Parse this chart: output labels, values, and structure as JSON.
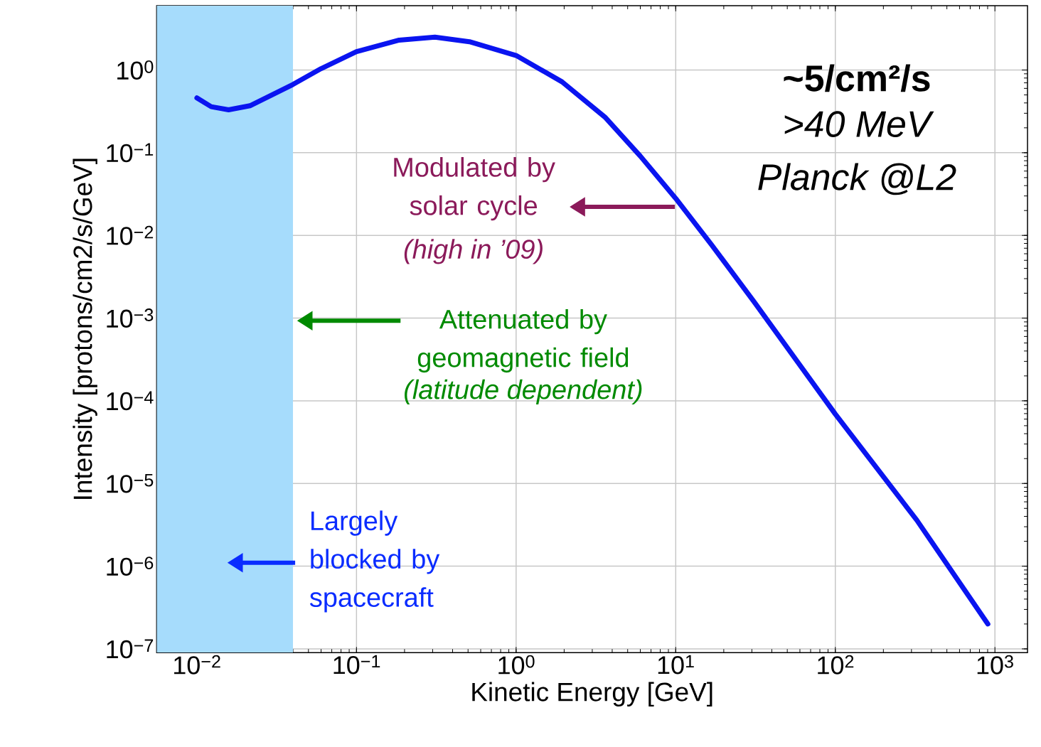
{
  "chart_data": {
    "type": "line",
    "xlabel": "Kinetic Energy [GeV]",
    "ylabel": "Intensity [protons/cm2/s/GeV]",
    "x": [
      0.01,
      0.0123,
      0.0158,
      0.0215,
      0.04,
      0.06,
      0.1,
      0.185,
      0.31,
      0.51,
      1,
      1.94,
      3.6,
      6,
      10,
      16.7,
      30.8,
      100,
      324,
      903
    ],
    "series": [
      {
        "color": "#0a14f0",
        "values": [
          0.46,
          0.36,
          0.33,
          0.37,
          0.67,
          1.04,
          1.67,
          2.3,
          2.5,
          2.2,
          1.5,
          0.72,
          0.27,
          0.091,
          0.028,
          0.0078,
          0.0016,
          6.9e-05,
          3.6e-06,
          2e-07
        ]
      }
    ],
    "log": "xy",
    "grid": true,
    "line_style": "solid",
    "marker": "none",
    "xlim": [
      0.0056,
      1600
    ],
    "ylim": [
      9e-08,
      6
    ],
    "xticks": [
      {
        "value": 0.01,
        "label": "10$^{−2}$"
      },
      {
        "value": 0.1,
        "label": "10$^{−1}$"
      },
      {
        "value": 1,
        "label": "10$^{0}$"
      },
      {
        "value": 10,
        "label": "10$^{1}$"
      },
      {
        "value": 100,
        "label": "10$^{2}$"
      },
      {
        "value": 1000,
        "label": "10$^{3}$"
      }
    ],
    "yticks": [
      {
        "value": 1e-07,
        "label": "10$^{−7}$"
      },
      {
        "value": 1e-06,
        "label": "10$^{−6}$"
      },
      {
        "value": 1e-05,
        "label": "10$^{−5}$"
      },
      {
        "value": 0.0001,
        "label": "10$^{−4}$"
      },
      {
        "value": 0.001,
        "label": "10$^{−3}$"
      },
      {
        "value": 0.01,
        "label": "10$^{−2}$"
      },
      {
        "value": 0.1,
        "label": "10$^{−1}$"
      },
      {
        "value": 1,
        "label": "10$^{0}$"
      }
    ],
    "bands": [
      {
        "axis": "x",
        "from": 0.0056,
        "to": 0.04,
        "color": "#a6dcfc"
      }
    ],
    "annotations": [
      "~5/cm²/s",
      ">40 MeV",
      "Planck @L2",
      "Modulated by solar cycle",
      "(high in ’09)",
      "Attenuated by geomagnetic field",
      "(latitude dependent)",
      "Largely blocked by spacecraft"
    ]
  }
}
